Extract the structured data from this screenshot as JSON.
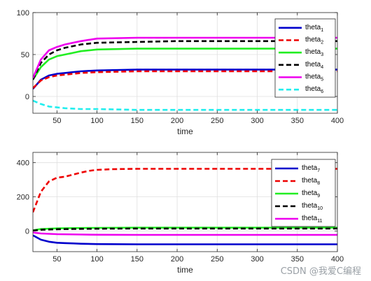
{
  "watermark": "CSDN @我爱C编程",
  "chart_data": [
    {
      "type": "line",
      "xlabel": "time",
      "ylabel": "",
      "xlim": [
        20,
        400
      ],
      "ylim": [
        -20,
        100
      ],
      "xticks": [
        50,
        100,
        150,
        200,
        250,
        300,
        350,
        400
      ],
      "yticks": [
        0,
        50,
        100
      ],
      "grid": true,
      "legend_position": "top-right",
      "series": [
        {
          "name": "theta",
          "sub": "1",
          "color": "#0000cc",
          "dash": "solid",
          "x": [
            20,
            30,
            40,
            50,
            60,
            70,
            80,
            100,
            150,
            200,
            300,
            400
          ],
          "y": [
            9,
            20,
            25,
            27,
            28,
            29,
            30,
            31,
            32,
            32,
            32,
            32
          ]
        },
        {
          "name": "theta",
          "sub": "2",
          "color": "#ee0000",
          "dash": "dashed",
          "x": [
            20,
            30,
            40,
            50,
            60,
            70,
            80,
            100,
            150,
            200,
            300,
            400
          ],
          "y": [
            10,
            19,
            23,
            25,
            26,
            27,
            28,
            29,
            30,
            30,
            30,
            30
          ]
        },
        {
          "name": "theta",
          "sub": "3",
          "color": "#22ee22",
          "dash": "solid",
          "x": [
            20,
            30,
            40,
            50,
            60,
            70,
            80,
            100,
            150,
            200,
            300,
            400
          ],
          "y": [
            20,
            35,
            44,
            48,
            50,
            52,
            54,
            56,
            57,
            57,
            57,
            57
          ]
        },
        {
          "name": "theta",
          "sub": "4",
          "color": "#000000",
          "dash": "dashed",
          "x": [
            20,
            30,
            40,
            50,
            60,
            70,
            80,
            100,
            150,
            200,
            300,
            400
          ],
          "y": [
            20,
            40,
            50,
            55,
            58,
            60,
            62,
            64,
            65,
            66,
            66,
            66
          ]
        },
        {
          "name": "theta",
          "sub": "5",
          "color": "#ee00ee",
          "dash": "solid",
          "x": [
            20,
            30,
            40,
            50,
            60,
            70,
            80,
            100,
            150,
            200,
            300,
            400
          ],
          "y": [
            22,
            44,
            55,
            59,
            62,
            64,
            66,
            69,
            70,
            70,
            70,
            70
          ]
        },
        {
          "name": "theta",
          "sub": "6",
          "color": "#22eeee",
          "dash": "dashed",
          "x": [
            20,
            30,
            40,
            50,
            60,
            80,
            100,
            150,
            200,
            300,
            400
          ],
          "y": [
            -5,
            -9,
            -12,
            -13,
            -14,
            -15,
            -15,
            -16,
            -16,
            -16,
            -16
          ]
        }
      ]
    },
    {
      "type": "line",
      "xlabel": "time",
      "ylabel": "",
      "xlim": [
        20,
        400
      ],
      "ylim": [
        -120,
        460
      ],
      "xticks": [
        50,
        100,
        150,
        200,
        250,
        300,
        350,
        400
      ],
      "yticks": [
        0,
        200,
        400
      ],
      "grid": true,
      "legend_position": "top-right",
      "series": [
        {
          "name": "theta",
          "sub": "7",
          "color": "#0000cc",
          "dash": "solid",
          "x": [
            20,
            30,
            40,
            50,
            60,
            70,
            80,
            100,
            150,
            200,
            300,
            400
          ],
          "y": [
            -25,
            -50,
            -62,
            -68,
            -70,
            -72,
            -74,
            -76,
            -77,
            -77,
            -77,
            -77
          ]
        },
        {
          "name": "theta",
          "sub": "8",
          "color": "#ee0000",
          "dash": "dashed",
          "x": [
            20,
            30,
            40,
            50,
            60,
            70,
            80,
            90,
            100,
            120,
            150,
            200,
            300,
            400
          ],
          "y": [
            110,
            230,
            290,
            312,
            318,
            330,
            342,
            352,
            358,
            362,
            364,
            364,
            364,
            364
          ]
        },
        {
          "name": "theta",
          "sub": "9",
          "color": "#22ee22",
          "dash": "solid",
          "x": [
            20,
            30,
            50,
            80,
            100,
            150,
            200,
            300,
            400
          ],
          "y": [
            5,
            12,
            16,
            18,
            19,
            20,
            20,
            20,
            20
          ]
        },
        {
          "name": "theta",
          "sub": "10",
          "color": "#000000",
          "dash": "dashed",
          "x": [
            20,
            30,
            50,
            80,
            100,
            150,
            200,
            300,
            400
          ],
          "y": [
            3,
            8,
            11,
            13,
            14,
            15,
            15,
            15,
            15
          ]
        },
        {
          "name": "theta",
          "sub": "11",
          "color": "#ee00ee",
          "dash": "solid",
          "x": [
            20,
            30,
            50,
            80,
            100,
            150,
            200,
            300,
            400
          ],
          "y": [
            -8,
            -14,
            -18,
            -20,
            -21,
            -22,
            -22,
            -22,
            -22
          ]
        }
      ]
    }
  ]
}
